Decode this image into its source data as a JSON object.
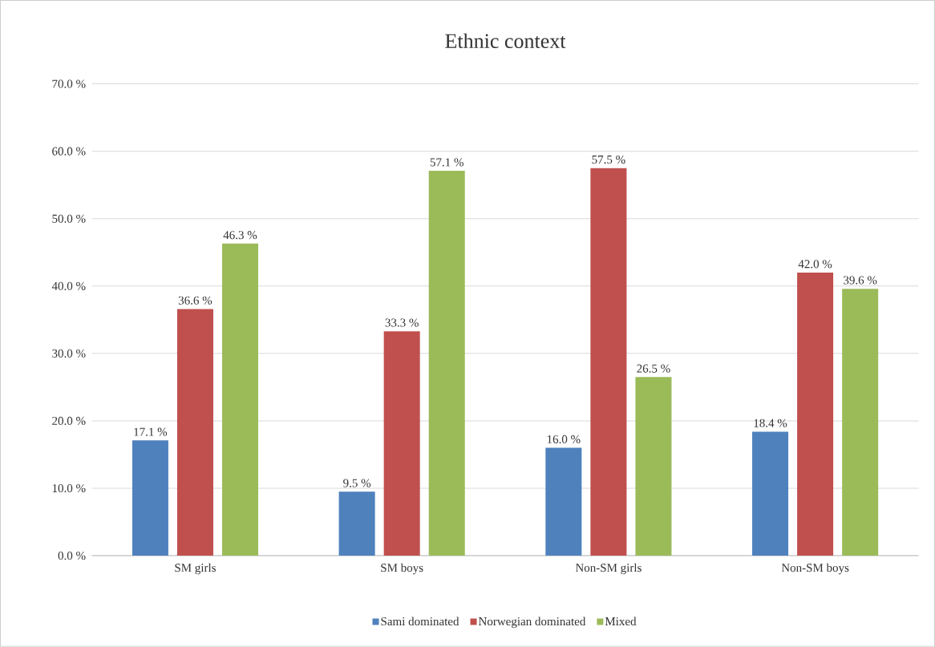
{
  "chart_data": {
    "type": "bar",
    "title": "Ethnic context",
    "categories": [
      "SM girls",
      "SM boys",
      "Non-SM girls",
      "Non-SM boys"
    ],
    "series": [
      {
        "name": "Sami dominated",
        "color": "#4f81bd",
        "values": [
          17.1,
          9.5,
          16.0,
          18.4
        ],
        "value_labels": [
          "17.1 %",
          "9.5 %",
          "16.0 %",
          "18.4 %"
        ]
      },
      {
        "name": "Norwegian dominated",
        "color": "#c0504d",
        "values": [
          36.6,
          33.3,
          57.5,
          42.0
        ],
        "value_labels": [
          "36.6 %",
          "33.3 %",
          "57.5 %",
          "42.0 %"
        ]
      },
      {
        "name": "Mixed",
        "color": "#9bbb59",
        "values": [
          46.3,
          57.1,
          26.5,
          39.6
        ],
        "value_labels": [
          "46.3 %",
          "57.1 %",
          "26.5 %",
          "39.6 %"
        ]
      }
    ],
    "ylim": [
      0,
      70
    ],
    "yticks": [
      {
        "value": 0,
        "label": "0.0 %"
      },
      {
        "value": 10,
        "label": "10.0 %"
      },
      {
        "value": 20,
        "label": "20.0 %"
      },
      {
        "value": 30,
        "label": "30.0 %"
      },
      {
        "value": 40,
        "label": "40.0 %"
      },
      {
        "value": 50,
        "label": "50.0 %"
      },
      {
        "value": 60,
        "label": "60.0 %"
      },
      {
        "value": 70,
        "label": "70.0 %"
      }
    ],
    "grid": "y",
    "legend": "bottom"
  }
}
